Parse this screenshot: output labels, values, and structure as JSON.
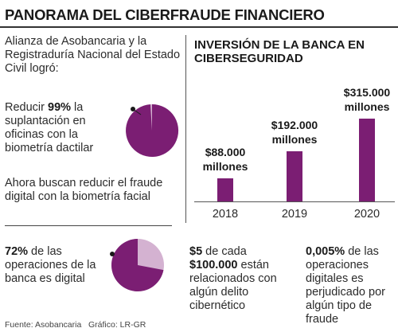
{
  "title": "PANORAMA DEL CIBERFRAUDE FINANCIERO",
  "intro": "Alianza de Asobancaria y la Registraduría Nacional del Estado Civil logró:",
  "stat1": {
    "prefix": "Reducir ",
    "value": "99%",
    "suffix": " la suplantación en oficinas con la biometría dactilar",
    "pie_fraction": 0.99
  },
  "stat2": {
    "text": "Ahora buscan reducir el fraude digital con la biometría facial"
  },
  "stat3": {
    "value": "72%",
    "text": " de las operaciones de la banca es digital",
    "pie_fraction": 0.72
  },
  "bottom1": {
    "value1": "$5",
    "text1": " de cada ",
    "value2": "$100.000",
    "text2": " están relacionados con algún delito cibernético"
  },
  "bottom2": {
    "value": "0,005%",
    "text": " de las operaciones digitales es perjudicado por algún tipo de fraude"
  },
  "source": "Fuente: Asobancaria",
  "credit": "Gráfico: LR-GR",
  "colors": {
    "accent": "#7b1e73",
    "accent_light": "#d4b2d1"
  },
  "chart_data": {
    "type": "bar",
    "title": "INVERSIÓN DE LA BANCA EN CIBERSEGURIDAD",
    "categories": [
      "2018",
      "2019",
      "2020"
    ],
    "values": [
      88000,
      192000,
      315000
    ],
    "labels": [
      "$88.000 millones",
      "$192.000 millones",
      "$315.000 millones"
    ],
    "ylim": [
      0,
      315000
    ]
  }
}
